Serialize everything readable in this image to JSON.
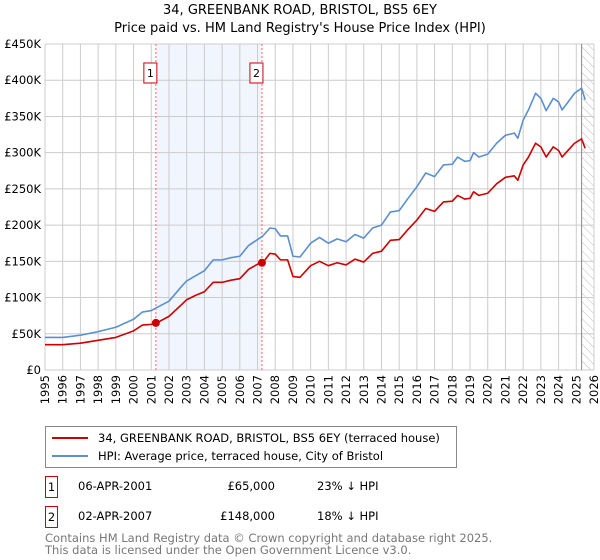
{
  "chart_data": {
    "type": "line",
    "title": "34, GREENBANK ROAD, BRISTOL, BS5 6EY",
    "subtitle": "Price paid vs. HM Land Registry's House Price Index (HPI)",
    "xlim": [
      1995,
      2026
    ],
    "ylim": [
      0,
      450000
    ],
    "x_ticks": [
      "1995",
      "1996",
      "1997",
      "1998",
      "1999",
      "2000",
      "2001",
      "2002",
      "2003",
      "2004",
      "2005",
      "2006",
      "2007",
      "2008",
      "2009",
      "2010",
      "2011",
      "2012",
      "2013",
      "2014",
      "2015",
      "2016",
      "2017",
      "2018",
      "2019",
      "2020",
      "2021",
      "2022",
      "2023",
      "2024",
      "2025",
      "2026"
    ],
    "y_ticks": [
      {
        "v": 0,
        "label": "£0"
      },
      {
        "v": 50000,
        "label": "£50K"
      },
      {
        "v": 100000,
        "label": "£100K"
      },
      {
        "v": 150000,
        "label": "£150K"
      },
      {
        "v": 200000,
        "label": "£200K"
      },
      {
        "v": 250000,
        "label": "£250K"
      },
      {
        "v": 300000,
        "label": "£300K"
      },
      {
        "v": 350000,
        "label": "£350K"
      },
      {
        "v": 400000,
        "label": "£400K"
      },
      {
        "v": 450000,
        "label": "£450K"
      }
    ],
    "grid": true,
    "shaded_range": [
      2001.26,
      2007.25
    ],
    "forecast_hatch_from": 2025.3,
    "series": [
      {
        "name": "34, GREENBANK ROAD, BRISTOL, BS5 6EY (terraced house)",
        "color": "#cc0000",
        "points_k": [
          [
            1995,
            35
          ],
          [
            1996,
            35
          ],
          [
            1997,
            37
          ],
          [
            1998,
            41
          ],
          [
            1999,
            45
          ],
          [
            2000,
            54
          ],
          [
            2000.5,
            62
          ],
          [
            2001,
            63
          ],
          [
            2001.3,
            65
          ],
          [
            2002,
            74
          ],
          [
            2002.7,
            90
          ],
          [
            2003,
            97
          ],
          [
            2003.5,
            103
          ],
          [
            2004,
            108
          ],
          [
            2004.5,
            121
          ],
          [
            2005,
            121
          ],
          [
            2005.5,
            124
          ],
          [
            2006,
            126
          ],
          [
            2006.5,
            139
          ],
          [
            2007,
            146
          ],
          [
            2007.3,
            148
          ],
          [
            2007.7,
            161
          ],
          [
            2008,
            160
          ],
          [
            2008.3,
            152
          ],
          [
            2008.7,
            152
          ],
          [
            2009,
            129
          ],
          [
            2009.4,
            128
          ],
          [
            2010,
            144
          ],
          [
            2010.5,
            150
          ],
          [
            2011,
            144
          ],
          [
            2011.5,
            148
          ],
          [
            2012,
            145
          ],
          [
            2012.5,
            153
          ],
          [
            2013,
            149
          ],
          [
            2013.5,
            161
          ],
          [
            2014,
            164
          ],
          [
            2014.5,
            179
          ],
          [
            2015,
            180
          ],
          [
            2015.5,
            194
          ],
          [
            2016,
            207
          ],
          [
            2016.5,
            223
          ],
          [
            2017,
            219
          ],
          [
            2017.5,
            232
          ],
          [
            2018,
            233
          ],
          [
            2018.3,
            241
          ],
          [
            2018.7,
            236
          ],
          [
            2019,
            237
          ],
          [
            2019.2,
            246
          ],
          [
            2019.5,
            241
          ],
          [
            2020,
            244
          ],
          [
            2020.5,
            257
          ],
          [
            2021,
            266
          ],
          [
            2021.5,
            268
          ],
          [
            2021.7,
            262
          ],
          [
            2022,
            283
          ],
          [
            2022.3,
            294
          ],
          [
            2022.7,
            313
          ],
          [
            2023,
            308
          ],
          [
            2023.3,
            294
          ],
          [
            2023.7,
            308
          ],
          [
            2024,
            303
          ],
          [
            2024.2,
            294
          ],
          [
            2024.6,
            305
          ],
          [
            2024.9,
            313
          ],
          [
            2025.3,
            319
          ],
          [
            2025.5,
            306
          ]
        ]
      },
      {
        "name": "HPI: Average price, terraced house, City of Bristol",
        "color": "#5b8fd0",
        "points_k": [
          [
            1995,
            45
          ],
          [
            1996,
            45
          ],
          [
            1997,
            48
          ],
          [
            1998,
            53
          ],
          [
            1999,
            59
          ],
          [
            2000,
            70
          ],
          [
            2000.5,
            80
          ],
          [
            2001,
            82
          ],
          [
            2001.3,
            86
          ],
          [
            2002,
            95
          ],
          [
            2002.7,
            115
          ],
          [
            2003,
            123
          ],
          [
            2003.5,
            130
          ],
          [
            2004,
            137
          ],
          [
            2004.5,
            152
          ],
          [
            2005,
            152
          ],
          [
            2005.5,
            155
          ],
          [
            2006,
            157
          ],
          [
            2006.5,
            172
          ],
          [
            2007,
            180
          ],
          [
            2007.3,
            185
          ],
          [
            2007.7,
            196
          ],
          [
            2008,
            195
          ],
          [
            2008.3,
            185
          ],
          [
            2008.7,
            185
          ],
          [
            2009,
            157
          ],
          [
            2009.4,
            156
          ],
          [
            2010,
            175
          ],
          [
            2010.5,
            183
          ],
          [
            2011,
            175
          ],
          [
            2011.5,
            181
          ],
          [
            2012,
            177
          ],
          [
            2012.5,
            187
          ],
          [
            2013,
            182
          ],
          [
            2013.5,
            196
          ],
          [
            2014,
            200
          ],
          [
            2014.5,
            218
          ],
          [
            2015,
            220
          ],
          [
            2015.5,
            237
          ],
          [
            2016,
            253
          ],
          [
            2016.5,
            272
          ],
          [
            2017,
            267
          ],
          [
            2017.5,
            283
          ],
          [
            2018,
            284
          ],
          [
            2018.3,
            294
          ],
          [
            2018.7,
            288
          ],
          [
            2019,
            289
          ],
          [
            2019.2,
            300
          ],
          [
            2019.5,
            294
          ],
          [
            2020,
            298
          ],
          [
            2020.5,
            313
          ],
          [
            2021,
            324
          ],
          [
            2021.5,
            327
          ],
          [
            2021.7,
            320
          ],
          [
            2022,
            345
          ],
          [
            2022.3,
            359
          ],
          [
            2022.7,
            382
          ],
          [
            2023,
            375
          ],
          [
            2023.3,
            358
          ],
          [
            2023.7,
            375
          ],
          [
            2024,
            370
          ],
          [
            2024.2,
            359
          ],
          [
            2024.6,
            372
          ],
          [
            2024.9,
            382
          ],
          [
            2025.3,
            389
          ],
          [
            2025.5,
            373
          ]
        ]
      }
    ],
    "sales": [
      {
        "label": "1",
        "x": 2001.26,
        "price": 65000,
        "date": "06-APR-2001",
        "price_text": "£65,000",
        "hpi_text": "23% ↓ HPI"
      },
      {
        "label": "2",
        "x": 2007.25,
        "price": 148000,
        "date": "02-APR-2007",
        "price_text": "£148,000",
        "hpi_text": "18% ↓ HPI"
      }
    ]
  },
  "footer": {
    "line1": "Contains HM Land Registry data © Crown copyright and database right 2025.",
    "line2": "This data is licensed under the Open Government Licence v3.0."
  }
}
